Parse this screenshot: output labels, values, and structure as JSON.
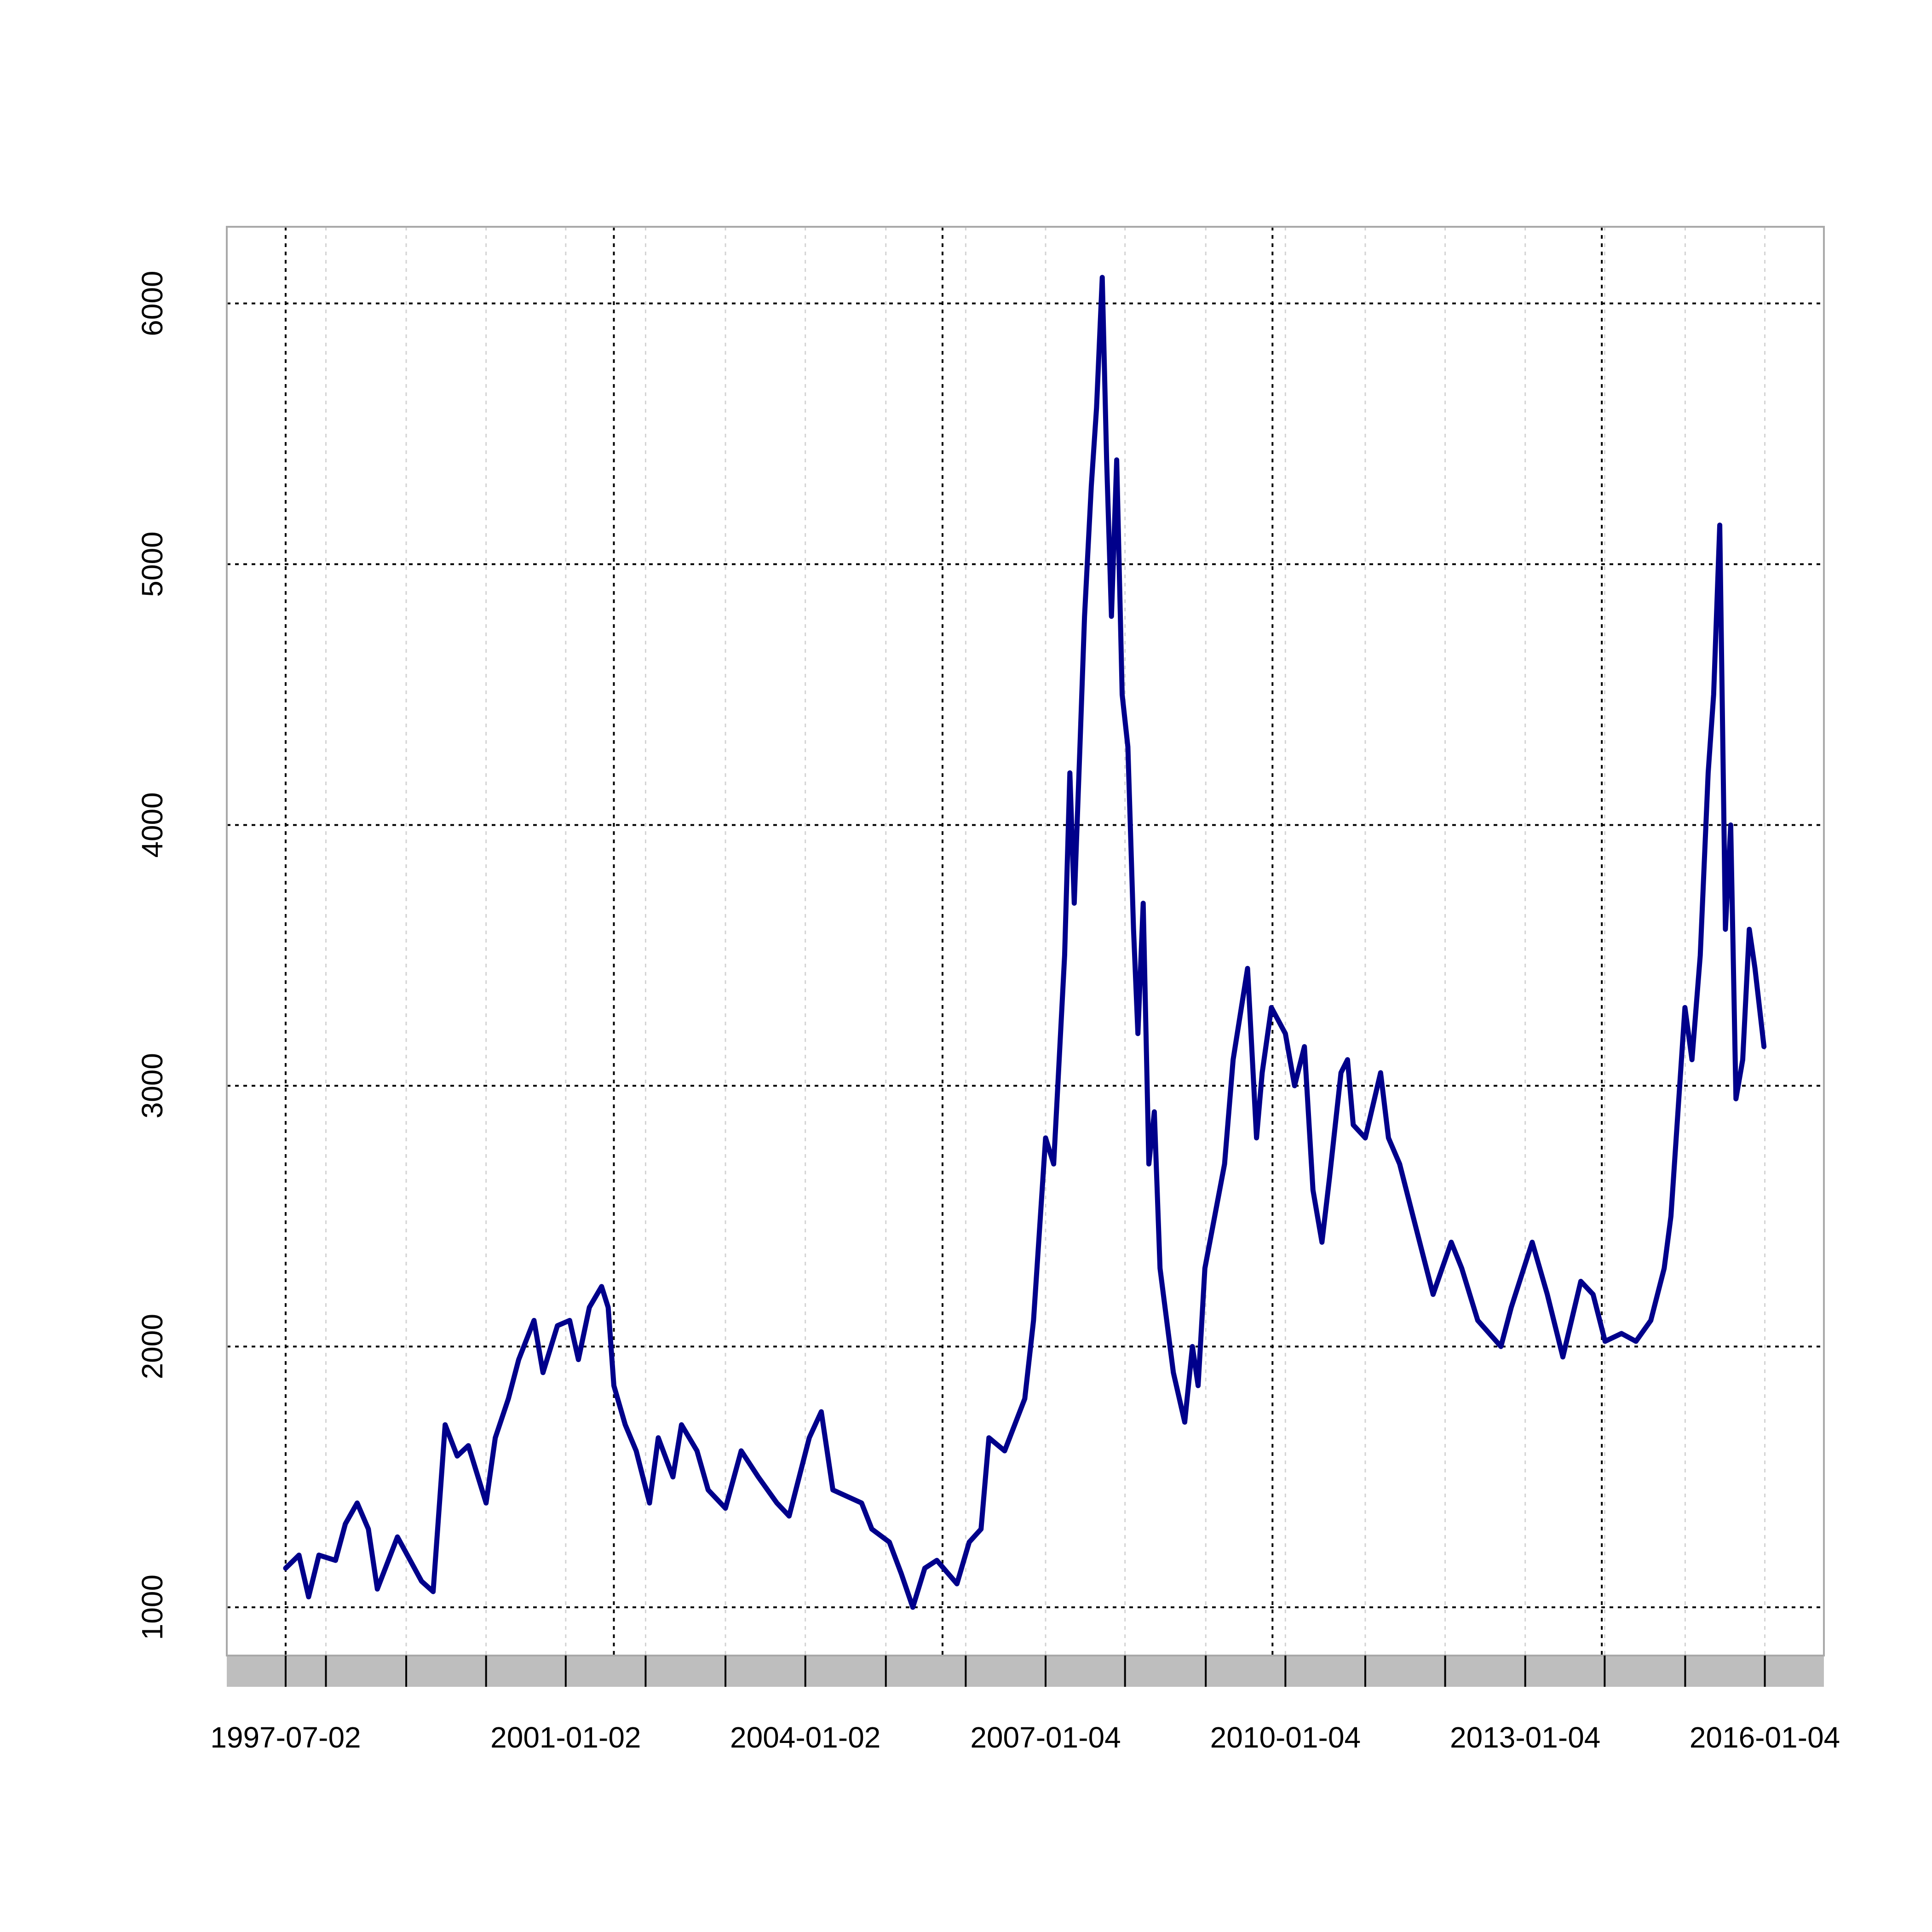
{
  "chart_data": {
    "type": "line",
    "color": "#00008b",
    "x": [
      "1997-07-02",
      "1997-09-01",
      "1997-10-15",
      "1997-12-01",
      "1998-02-15",
      "1998-04-01",
      "1998-05-25",
      "1998-07-15",
      "1998-08-25",
      "1998-11-25",
      "1999-03-15",
      "1999-05-07",
      "1999-07-01",
      "1999-08-25",
      "1999-10-15",
      "2000-01-04",
      "2000-02-15",
      "2000-04-15",
      "2000-06-01",
      "2000-08-10",
      "2000-09-20",
      "2000-11-25",
      "2001-01-20",
      "2001-03-01",
      "2001-04-20",
      "2001-06-15",
      "2001-07-15",
      "2001-08-10",
      "2001-10-01",
      "2001-11-20",
      "2002-01-20",
      "2002-03-01",
      "2002-05-07",
      "2002-06-15",
      "2002-08-25",
      "2002-10-15",
      "2003-01-02",
      "2003-03-15",
      "2003-06-01",
      "2003-08-25",
      "2003-10-20",
      "2004-01-20",
      "2004-03-15",
      "2004-05-07",
      "2004-09-15",
      "2004-11-01",
      "2005-01-20",
      "2005-03-15",
      "2005-05-07",
      "2005-07-01",
      "2005-08-25",
      "2005-11-25",
      "2006-01-20",
      "2006-03-15",
      "2006-04-20",
      "2006-07-01",
      "2006-10-01",
      "2006-11-10",
      "2007-01-04",
      "2007-02-10",
      "2007-03-01",
      "2007-04-01",
      "2007-04-25",
      "2007-05-15",
      "2007-06-10",
      "2007-07-01",
      "2007-08-01",
      "2007-08-25",
      "2007-09-20",
      "2007-10-10",
      "2007-11-01",
      "2007-11-25",
      "2007-12-20",
      "2008-01-15",
      "2008-02-10",
      "2008-03-01",
      "2008-03-25",
      "2008-04-20",
      "2008-05-15",
      "2008-06-10",
      "2008-08-10",
      "2008-10-01",
      "2008-11-05",
      "2008-12-01",
      "2009-01-01",
      "2009-02-15",
      "2009-04-01",
      "2009-05-10",
      "2009-07-15",
      "2009-08-25",
      "2009-09-20",
      "2009-11-01",
      "2010-01-04",
      "2010-02-15",
      "2010-04-01",
      "2010-05-10",
      "2010-06-20",
      "2010-07-25",
      "2010-09-15",
      "2010-10-15",
      "2010-11-10",
      "2011-01-04",
      "2011-03-15",
      "2011-04-20",
      "2011-06-10",
      "2011-08-10",
      "2011-11-10",
      "2012-02-01",
      "2012-03-20",
      "2012-06-01",
      "2012-09-15",
      "2012-11-01",
      "2013-02-05",
      "2013-04-15",
      "2013-06-25",
      "2013-09-15",
      "2013-11-10",
      "2014-01-04",
      "2014-03-20",
      "2014-05-25",
      "2014-08-01",
      "2014-10-01",
      "2014-11-01",
      "2015-01-04",
      "2015-02-05",
      "2015-03-15",
      "2015-04-20",
      "2015-05-15",
      "2015-06-12",
      "2015-07-08",
      "2015-08-01",
      "2015-08-25",
      "2015-09-25",
      "2015-10-25",
      "2015-11-20",
      "2015-12-31"
    ],
    "values": [
      1150,
      1200,
      1040,
      1200,
      1180,
      1320,
      1400,
      1300,
      1070,
      1270,
      1100,
      1060,
      1700,
      1580,
      1620,
      1400,
      1650,
      1800,
      1950,
      2100,
      1900,
      2080,
      2100,
      1950,
      2150,
      2230,
      2150,
      1850,
      1700,
      1600,
      1400,
      1650,
      1500,
      1700,
      1600,
      1450,
      1380,
      1600,
      1500,
      1400,
      1350,
      1650,
      1750,
      1450,
      1400,
      1300,
      1250,
      1130,
      1000,
      1150,
      1180,
      1090,
      1250,
      1300,
      1650,
      1600,
      1800,
      2100,
      2800,
      2700,
      3000,
      3500,
      4200,
      3700,
      4300,
      4800,
      5300,
      5600,
      6100,
      5400,
      4800,
      5400,
      4500,
      4300,
      3600,
      3200,
      3700,
      2700,
      2900,
      2300,
      1900,
      1710,
      2000,
      1850,
      2300,
      2500,
      2700,
      3100,
      3450,
      2800,
      3050,
      3300,
      3200,
      3000,
      3150,
      2600,
      2400,
      2650,
      3050,
      3100,
      2850,
      2800,
      3050,
      2800,
      2700,
      2500,
      2200,
      2400,
      2300,
      2100,
      2000,
      2150,
      2400,
      2200,
      1960,
      2250,
      2200,
      2020,
      2050,
      2020,
      2100,
      2300,
      2500,
      3300,
      3100,
      3500,
      4200,
      4500,
      5150,
      3600,
      4000,
      2950,
      3100,
      3600,
      3450,
      3150
    ],
    "xlim": [
      "1996-10-06",
      "2016-09-30"
    ],
    "xticks": [
      "1997-07-02",
      "2001-01-02",
      "2004-01-02",
      "2007-01-04",
      "2010-01-04",
      "2013-01-04",
      "2016-01-04"
    ],
    "minor_xticks": [
      "1998-01-02",
      "1999-01-04",
      "2000-01-04",
      "2002-01-02",
      "2003-01-02",
      "2005-01-04",
      "2006-01-04",
      "2008-01-02",
      "2009-01-05",
      "2011-01-04",
      "2012-01-04",
      "2014-01-02",
      "2015-01-05"
    ],
    "major_xgrid": [
      "1997-07-02",
      "2001-08-10",
      "2005-09-20",
      "2009-11-06",
      "2013-12-20"
    ],
    "ylim": [
      815,
      6294
    ],
    "yticks": [
      1000,
      2000,
      3000,
      4000,
      5000,
      6000
    ],
    "grid": true
  }
}
